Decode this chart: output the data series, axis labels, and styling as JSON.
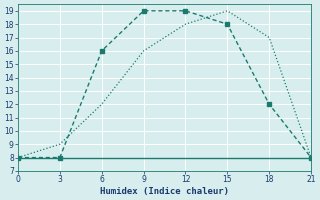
{
  "x_main": [
    0,
    3,
    6,
    9,
    12,
    15,
    18,
    21
  ],
  "y_main": [
    8,
    8,
    16,
    19,
    19,
    18,
    12,
    8
  ],
  "x_secondary": [
    0,
    3,
    6,
    9,
    12,
    15,
    18,
    21
  ],
  "y_secondary": [
    8,
    9,
    12,
    16,
    18,
    19,
    17,
    8
  ],
  "y_flat": [
    8,
    8,
    8,
    8,
    8,
    8,
    8,
    8
  ],
  "xlim": [
    0,
    21
  ],
  "ylim": [
    7,
    19.5
  ],
  "xticks": [
    0,
    3,
    6,
    9,
    12,
    15,
    18,
    21
  ],
  "yticks": [
    7,
    8,
    9,
    10,
    11,
    12,
    13,
    14,
    15,
    16,
    17,
    18,
    19
  ],
  "xlabel": "Humidex (Indice chaleur)",
  "line_color": "#1a7a6e",
  "bg_color": "#d8eeee",
  "grid_color": "#c8dada",
  "font_color": "#1a3a6e"
}
